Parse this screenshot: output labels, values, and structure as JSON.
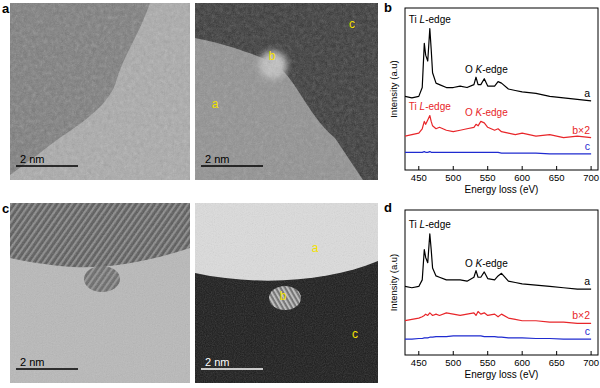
{
  "figure": {
    "panels": [
      {
        "label": "a",
        "images": [
          {
            "scale_bar": "2 nm"
          },
          {
            "scale_bar": "2 nm",
            "points": [
              "b",
              "c",
              "a"
            ]
          }
        ]
      },
      {
        "label": "c",
        "images": [
          {
            "scale_bar": "2 nm"
          },
          {
            "scale_bar": "2 nm",
            "points": [
              "a",
              "b",
              "c"
            ]
          }
        ]
      }
    ]
  },
  "chart_data": [
    {
      "type": "line",
      "panel": "b",
      "x_label": "Energy loss (eV)",
      "y_label": "Intensity (a.u)",
      "x": [
        430,
        440,
        450,
        455,
        458,
        460,
        463,
        466,
        468,
        470,
        475,
        480,
        490,
        500,
        510,
        520,
        530,
        533,
        536,
        540,
        545,
        550,
        560,
        565,
        570,
        580,
        590,
        600,
        620,
        640,
        660,
        680,
        700
      ],
      "xlim": [
        430,
        710
      ],
      "xticks": [
        450,
        500,
        550,
        600,
        650,
        700
      ],
      "ylim": [
        0,
        110
      ],
      "tick_labels": "x",
      "series": [
        {
          "name": "a",
          "color": "#000000",
          "values": [
            50,
            49,
            50,
            56,
            86,
            78,
            74,
            96,
            82,
            66,
            59,
            58,
            56,
            56,
            57,
            56,
            58,
            63,
            58,
            58,
            62,
            57,
            57,
            60,
            59,
            55,
            54,
            53,
            52,
            50,
            49,
            48,
            47
          ]
        },
        {
          "name": "b×2",
          "color": "#e8262a",
          "values": [
            23,
            24,
            25,
            28,
            33,
            31,
            34,
            37,
            33,
            30,
            28,
            29,
            27,
            26,
            27,
            28,
            29,
            31,
            30,
            33,
            32,
            29,
            27,
            28,
            26,
            25,
            24,
            25,
            23,
            24,
            22,
            23,
            22
          ]
        },
        {
          "name": "c",
          "color": "#1f2bd0",
          "values": [
            12,
            12,
            12,
            12,
            12.5,
            12,
            12,
            12.5,
            12,
            12,
            12,
            12,
            12,
            12,
            12,
            12,
            12,
            12,
            12,
            12,
            12,
            12,
            12,
            12,
            11.5,
            11.5,
            11.5,
            11.5,
            11.5,
            11,
            11,
            11,
            11
          ]
        }
      ],
      "annotations": [
        {
          "text": "Ti L-edge",
          "x": 466,
          "y": 100,
          "color": "#000000"
        },
        {
          "text": "O K-edge",
          "x": 548,
          "y": 66,
          "color": "#000000"
        },
        {
          "text": "Ti L-edge",
          "x": 466,
          "y": 41,
          "color": "#e8262a"
        },
        {
          "text": "O K-edge",
          "x": 548,
          "y": 37,
          "color": "#e8262a"
        }
      ]
    },
    {
      "type": "line",
      "panel": "d",
      "x_label": "Energy loss (eV)",
      "y_label": "Intensity (a.u)",
      "x": [
        430,
        440,
        450,
        455,
        458,
        460,
        463,
        466,
        468,
        470,
        475,
        480,
        490,
        500,
        510,
        520,
        530,
        533,
        536,
        540,
        545,
        550,
        560,
        565,
        570,
        580,
        590,
        600,
        620,
        640,
        660,
        680,
        700
      ],
      "xlim": [
        430,
        710
      ],
      "xticks": [
        450,
        500,
        550,
        600,
        650,
        700
      ],
      "ylim": [
        0,
        110
      ],
      "tick_labels": "x",
      "series": [
        {
          "name": "a",
          "color": "#000000",
          "values": [
            52,
            51,
            52,
            57,
            80,
            74,
            70,
            92,
            80,
            66,
            60,
            59,
            57,
            57,
            57,
            56,
            59,
            64,
            59,
            59,
            63,
            58,
            57,
            60,
            62,
            56,
            55,
            54,
            53,
            52,
            51,
            50,
            50
          ]
        },
        {
          "name": "b×2",
          "color": "#e8262a",
          "values": [
            26,
            27,
            28,
            29,
            30,
            31,
            30,
            32,
            31,
            30,
            31,
            30,
            32,
            31,
            30,
            31,
            32,
            30,
            33,
            31,
            32,
            30,
            31,
            29,
            31,
            28,
            27,
            26,
            26,
            25,
            25,
            24,
            24
          ]
        },
        {
          "name": "c",
          "color": "#1f2bd0",
          "values": [
            12,
            12,
            12.5,
            12.5,
            13,
            13,
            13,
            13.5,
            13.5,
            13.5,
            14,
            14,
            14,
            14.5,
            14.5,
            14.5,
            14.5,
            14.5,
            14.5,
            14.5,
            14,
            14,
            14,
            13.5,
            13.5,
            13,
            13,
            13,
            12.5,
            12.5,
            12,
            12,
            12
          ]
        }
      ],
      "annotations": [
        {
          "text": "Ti L-edge",
          "x": 466,
          "y": 96,
          "color": "#000000"
        },
        {
          "text": "O K-edge",
          "x": 548,
          "y": 67,
          "color": "#000000"
        }
      ]
    }
  ]
}
